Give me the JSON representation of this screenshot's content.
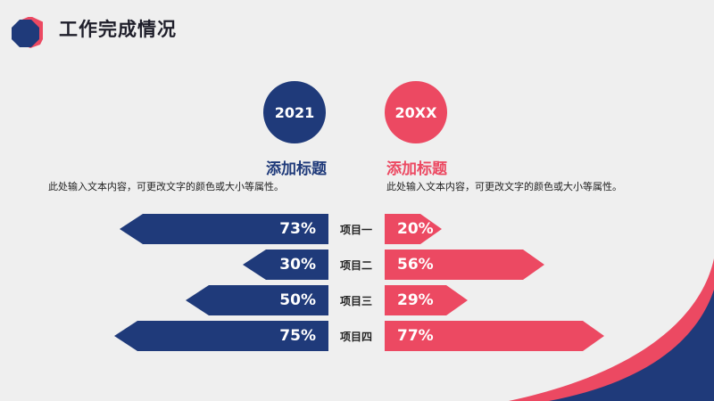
{
  "header": {
    "title": "工作完成情况"
  },
  "left": {
    "year": "2021",
    "subtitle": "添加标题",
    "desc": "此处输入文本内容，可更改文字的颜色或大小等属性。"
  },
  "right": {
    "year": "20XX",
    "subtitle": "添加标题",
    "desc": "此处输入文本内容，可更改文字的颜色或大小等属性。"
  },
  "items": [
    {
      "label": "项目一",
      "left_value": 0.73,
      "left_text": "73%",
      "right_value": 0.2,
      "right_text": "20%"
    },
    {
      "label": "项目二",
      "left_value": 0.3,
      "left_text": "30%",
      "right_value": 0.56,
      "right_text": "56%"
    },
    {
      "label": "项目三",
      "left_value": 0.5,
      "left_text": "50%",
      "right_value": 0.29,
      "right_text": "29%"
    },
    {
      "label": "项目四",
      "left_value": 0.75,
      "left_text": "75%",
      "right_value": 0.77,
      "right_text": "77%"
    }
  ],
  "colors": {
    "navy": "#1f3a7a",
    "pink": "#ec4962",
    "background": "#efefef"
  }
}
